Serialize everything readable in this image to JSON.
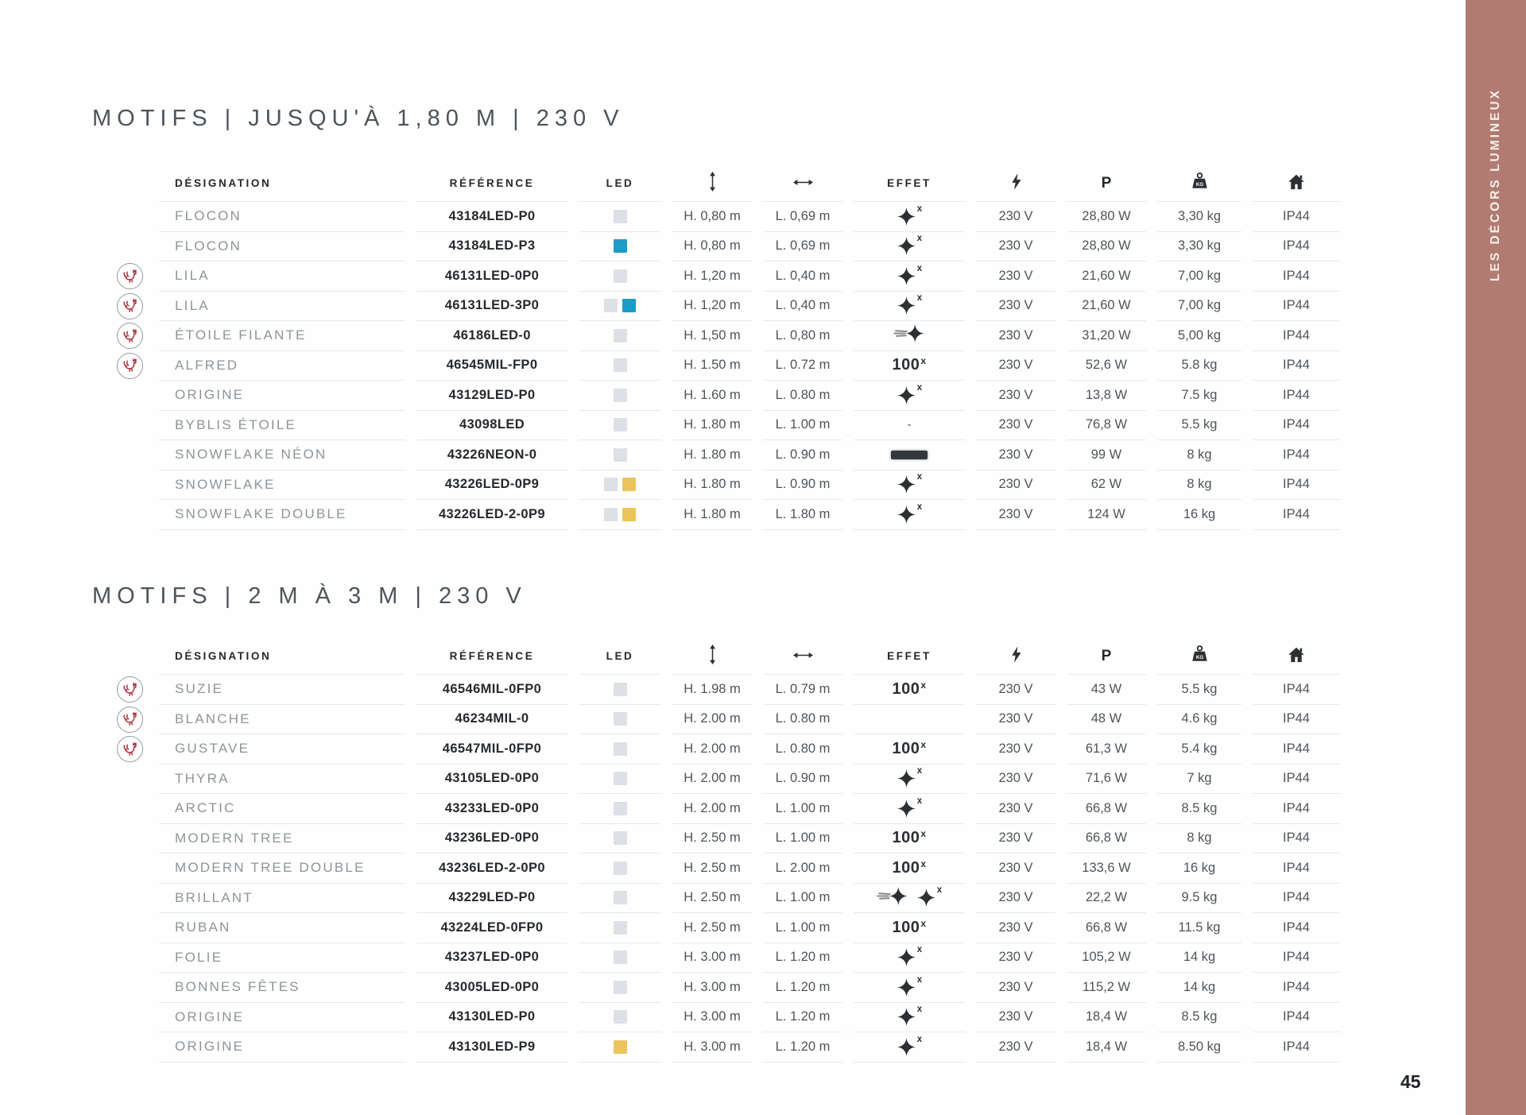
{
  "page": {
    "number": "45"
  },
  "sidebar": {
    "label": "LES DÉCORS LUMINEUX"
  },
  "colors": {
    "sidebar_bg": "#b17b72",
    "sidebar_text": "#f7f0e8",
    "led_gray": "#dde1e6",
    "led_blue": "#1d9cc9",
    "led_yellow": "#ecc45c",
    "accent_red": "#b0303c",
    "icon_dark": "#2c2f33"
  },
  "columns": {
    "designation": "DÉSIGNATION",
    "reference": "RÉFÉRENCE",
    "led": "LED",
    "height_icon": "updown-arrow-icon",
    "width_icon": "leftright-arrow-icon",
    "effect": "EFFET",
    "voltage_icon": "lightning-icon",
    "power": "P",
    "weight_icon": "kg-weight-icon",
    "ip_icon": "house-icon"
  },
  "effect_labels": {
    "hundred": "100",
    "multiplier": "x",
    "dash": "-"
  },
  "tables": [
    {
      "title": "MOTIFS | JUSQU'À 1,80 M | 230 V",
      "rows": [
        {
          "made_in_france": false,
          "designation": "FLOCON",
          "reference": "43184LED-P0",
          "led": [
            "gray"
          ],
          "height": "H. 0,80 m",
          "width": "L. 0,69 m",
          "effect": "sparkle-x",
          "voltage": "230 V",
          "power": "28,80 W",
          "weight": "3,30 kg",
          "ip": "IP44"
        },
        {
          "made_in_france": false,
          "designation": "FLOCON",
          "reference": "43184LED-P3",
          "led": [
            "blue"
          ],
          "height": "H. 0,80 m",
          "width": "L. 0,69 m",
          "effect": "sparkle-x",
          "voltage": "230 V",
          "power": "28,80 W",
          "weight": "3,30 kg",
          "ip": "IP44"
        },
        {
          "made_in_france": true,
          "designation": "LILA",
          "reference": "46131LED-0P0",
          "led": [
            "gray"
          ],
          "height": "H. 1,20 m",
          "width": "L. 0,40 m",
          "effect": "sparkle-x",
          "voltage": "230 V",
          "power": "21,60 W",
          "weight": "7,00 kg",
          "ip": "IP44"
        },
        {
          "made_in_france": true,
          "designation": "LILA",
          "reference": "46131LED-3P0",
          "led": [
            "gray",
            "blue"
          ],
          "height": "H. 1,20 m",
          "width": "L. 0,40 m",
          "effect": "sparkle-x",
          "voltage": "230 V",
          "power": "21,60 W",
          "weight": "7,00 kg",
          "ip": "IP44"
        },
        {
          "made_in_france": true,
          "designation": "ÉTOILE FILANTE",
          "reference": "46186LED-0",
          "led": [
            "gray"
          ],
          "height": "H. 1,50 m",
          "width": "L. 0,80 m",
          "effect": "comet",
          "voltage": "230 V",
          "power": "31,20 W",
          "weight": "5,00 kg",
          "ip": "IP44"
        },
        {
          "made_in_france": true,
          "designation": "ALFRED",
          "reference": "46545MIL-FP0",
          "led": [
            "gray"
          ],
          "height": "H. 1.50 m",
          "width": "L. 0.72 m",
          "effect": "100x",
          "voltage": "230 V",
          "power": "52,6 W",
          "weight": "5.8 kg",
          "ip": "IP44"
        },
        {
          "made_in_france": false,
          "designation": "ORIGINE",
          "reference": "43129LED-P0",
          "led": [
            "gray"
          ],
          "height": "H. 1.60 m",
          "width": "L. 0.80 m",
          "effect": "sparkle-x",
          "voltage": "230 V",
          "power": "13,8 W",
          "weight": "7.5 kg",
          "ip": "IP44"
        },
        {
          "made_in_france": false,
          "designation": "BYBLIS ÉTOILE",
          "reference": "43098LED",
          "led": [
            "gray"
          ],
          "height": "H. 1.80 m",
          "width": "L. 1.00 m",
          "effect": "dash",
          "voltage": "230 V",
          "power": "76,8 W",
          "weight": "5.5 kg",
          "ip": "IP44"
        },
        {
          "made_in_france": false,
          "designation": "SNOWFLAKE NÉON",
          "reference": "43226NEON-0",
          "led": [
            "gray"
          ],
          "height": "H. 1.80 m",
          "width": "L. 0.90 m",
          "effect": "neon-bar",
          "voltage": "230 V",
          "power": "99 W",
          "weight": "8 kg",
          "ip": "IP44"
        },
        {
          "made_in_france": false,
          "designation": "SNOWFLAKE",
          "reference": "43226LED-0P9",
          "led": [
            "gray",
            "yellow"
          ],
          "height": "H. 1.80 m",
          "width": "L. 0.90 m",
          "effect": "sparkle-x",
          "voltage": "230 V",
          "power": "62 W",
          "weight": "8 kg",
          "ip": "IP44"
        },
        {
          "made_in_france": false,
          "designation": "SNOWFLAKE DOUBLE",
          "reference": "43226LED-2-0P9",
          "led": [
            "gray",
            "yellow"
          ],
          "height": "H. 1.80 m",
          "width": "L. 1.80 m",
          "effect": "sparkle-x",
          "voltage": "230 V",
          "power": "124 W",
          "weight": "16 kg",
          "ip": "IP44"
        }
      ]
    },
    {
      "title": "MOTIFS | 2 M À 3 M | 230 V",
      "rows": [
        {
          "made_in_france": true,
          "designation": "SUZIE",
          "reference": "46546MIL-0FP0",
          "led": [
            "gray"
          ],
          "height": "H. 1.98 m",
          "width": "L. 0.79 m",
          "effect": "100x",
          "voltage": "230 V",
          "power": "43 W",
          "weight": "5.5 kg",
          "ip": "IP44"
        },
        {
          "made_in_france": true,
          "designation": "BLANCHE",
          "reference": "46234MIL-0",
          "led": [
            "gray"
          ],
          "height": "H. 2.00 m",
          "width": "L. 0.80 m",
          "effect": "none",
          "voltage": "230 V",
          "power": "48 W",
          "weight": "4.6 kg",
          "ip": "IP44"
        },
        {
          "made_in_france": true,
          "designation": "GUSTAVE",
          "reference": "46547MIL-0FP0",
          "led": [
            "gray"
          ],
          "height": "H. 2.00 m",
          "width": "L. 0.80 m",
          "effect": "100x",
          "voltage": "230 V",
          "power": "61,3 W",
          "weight": "5.4 kg",
          "ip": "IP44"
        },
        {
          "made_in_france": false,
          "designation": "THYRA",
          "reference": "43105LED-0P0",
          "led": [
            "gray"
          ],
          "height": "H. 2.00 m",
          "width": "L. 0.90 m",
          "effect": "sparkle-x",
          "voltage": "230 V",
          "power": "71,6 W",
          "weight": "7 kg",
          "ip": "IP44"
        },
        {
          "made_in_france": false,
          "designation": "ARCTIC",
          "reference": "43233LED-0P0",
          "led": [
            "gray"
          ],
          "height": "H. 2.00 m",
          "width": "L. 1.00 m",
          "effect": "sparkle-x",
          "voltage": "230 V",
          "power": "66,8 W",
          "weight": "8.5 kg",
          "ip": "IP44"
        },
        {
          "made_in_france": false,
          "designation": "MODERN TREE",
          "reference": "43236LED-0P0",
          "led": [
            "gray"
          ],
          "height": "H. 2.50 m",
          "width": "L. 1.00 m",
          "effect": "100x",
          "voltage": "230 V",
          "power": "66,8 W",
          "weight": "8 kg",
          "ip": "IP44"
        },
        {
          "made_in_france": false,
          "designation": "MODERN TREE DOUBLE",
          "reference": "43236LED-2-0P0",
          "led": [
            "gray"
          ],
          "height": "H. 2.50 m",
          "width": "L. 2.00 m",
          "effect": "100x",
          "voltage": "230 V",
          "power": "133,6 W",
          "weight": "16 kg",
          "ip": "IP44"
        },
        {
          "made_in_france": false,
          "designation": "BRILLANT",
          "reference": "43229LED-P0",
          "led": [
            "gray"
          ],
          "height": "H. 2.50 m",
          "width": "L. 1.00 m",
          "effect": "comet+sparkle-x",
          "voltage": "230 V",
          "power": "22,2 W",
          "weight": "9.5 kg",
          "ip": "IP44"
        },
        {
          "made_in_france": false,
          "designation": "RUBAN",
          "reference": "43224LED-0FP0",
          "led": [
            "gray"
          ],
          "height": "H. 2.50 m",
          "width": "L. 1.00 m",
          "effect": "100x",
          "voltage": "230 V",
          "power": "66,8 W",
          "weight": "11.5 kg",
          "ip": "IP44"
        },
        {
          "made_in_france": false,
          "designation": "FOLIE",
          "reference": "43237LED-0P0",
          "led": [
            "gray"
          ],
          "height": "H. 3.00 m",
          "width": "L. 1.20 m",
          "effect": "sparkle-x",
          "voltage": "230 V",
          "power": "105,2 W",
          "weight": "14 kg",
          "ip": "IP44"
        },
        {
          "made_in_france": false,
          "designation": "BONNES FÊTES",
          "reference": "43005LED-0P0",
          "led": [
            "gray"
          ],
          "height": "H. 3.00 m",
          "width": "L. 1.20 m",
          "effect": "sparkle-x",
          "voltage": "230 V",
          "power": "115,2 W",
          "weight": "14 kg",
          "ip": "IP44"
        },
        {
          "made_in_france": false,
          "designation": "ORIGINE",
          "reference": "43130LED-P0",
          "led": [
            "gray"
          ],
          "height": "H. 3.00 m",
          "width": "L. 1.20 m",
          "effect": "sparkle-x",
          "voltage": "230 V",
          "power": "18,4 W",
          "weight": "8.5 kg",
          "ip": "IP44"
        },
        {
          "made_in_france": false,
          "designation": "ORIGINE",
          "reference": "43130LED-P9",
          "led": [
            "yellow"
          ],
          "height": "H. 3.00 m",
          "width": "L. 1.20 m",
          "effect": "sparkle-x",
          "voltage": "230 V",
          "power": "18,4 W",
          "weight": "8.50 kg",
          "ip": "IP44"
        }
      ]
    }
  ]
}
